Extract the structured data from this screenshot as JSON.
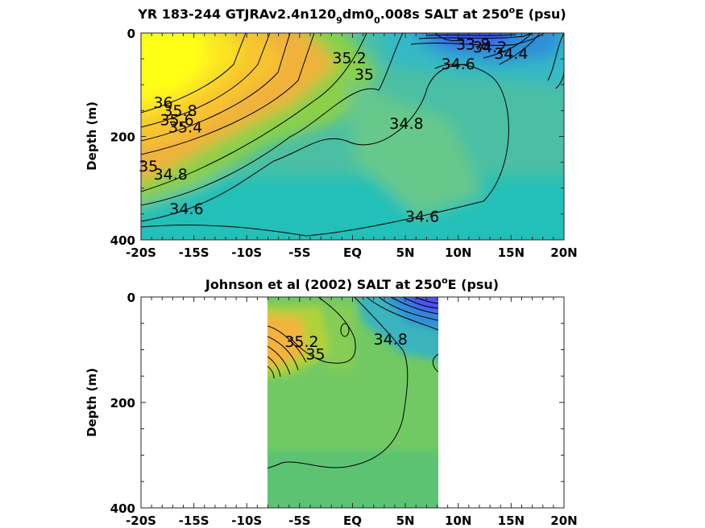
{
  "chart_data": [
    {
      "type": "contour",
      "title_parts": [
        "YR 183-244 GTJRAv2.4n120",
        "9",
        "dm0",
        "0",
        ".008s SALT at 250",
        "o",
        "E (psu)"
      ],
      "ylabel": "Depth (m)",
      "x_ticks": [
        "-20S",
        "-15S",
        "-10S",
        "-5S",
        "EQ",
        "5N",
        "10N",
        "15N",
        "20N"
      ],
      "y_ticks": [
        "0",
        "200",
        "400"
      ],
      "xlim": [
        -20,
        20
      ],
      "ylim": [
        0,
        400
      ],
      "contour_labels": [
        {
          "text": "36",
          "x": -17.9,
          "y": 145
        },
        {
          "text": "35.8",
          "x": -16.3,
          "y": 160
        },
        {
          "text": "35.6",
          "x": -16.6,
          "y": 178
        },
        {
          "text": "35.4",
          "x": -15.8,
          "y": 192
        },
        {
          "text": "35.2",
          "x": -0.3,
          "y": 58
        },
        {
          "text": "35",
          "x": 1.1,
          "y": 90
        },
        {
          "text": "35",
          "x": -19.3,
          "y": 268
        },
        {
          "text": "34.8",
          "x": -17.2,
          "y": 283
        },
        {
          "text": "34.8",
          "x": 5.1,
          "y": 185
        },
        {
          "text": "34.6",
          "x": 10.0,
          "y": 70
        },
        {
          "text": "34.6",
          "x": -15.7,
          "y": 350
        },
        {
          "text": "34.6",
          "x": 6.6,
          "y": 365
        },
        {
          "text": "33.8",
          "x": 11.4,
          "y": 32
        },
        {
          "text": "34.2",
          "x": 13.0,
          "y": 37
        },
        {
          "text": "34.4",
          "x": 15.0,
          "y": 50
        }
      ]
    },
    {
      "type": "contour",
      "title_parts": [
        "Johnson et al (2002) SALT at 250",
        "o",
        "E (psu)"
      ],
      "ylabel": "Depth (m)",
      "x_ticks": [
        "-20S",
        "-15S",
        "-10S",
        "-5S",
        "EQ",
        "5N",
        "10N",
        "15N",
        "20N"
      ],
      "y_ticks": [
        "0",
        "200",
        "400"
      ],
      "xlim": [
        -20,
        20
      ],
      "ylim": [
        0,
        400
      ],
      "data_extent_lon": [
        -8,
        8.2
      ],
      "contour_labels": [
        {
          "text": "35.2",
          "x": -4.8,
          "y": 95
        },
        {
          "text": "35",
          "x": -3.5,
          "y": 118
        },
        {
          "text": "34.8",
          "x": 3.6,
          "y": 90
        }
      ]
    }
  ]
}
